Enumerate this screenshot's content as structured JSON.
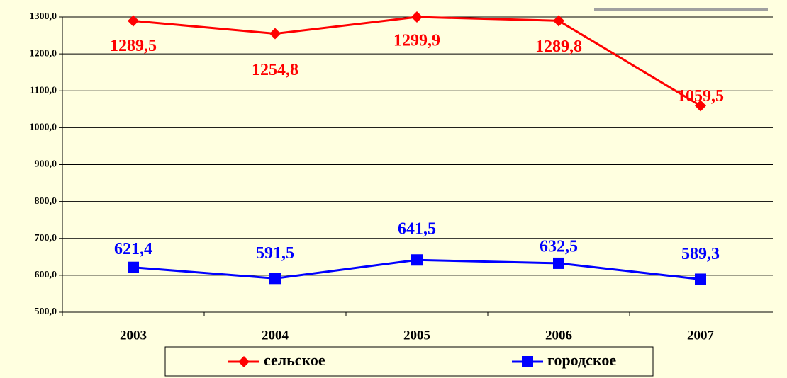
{
  "chart_data": {
    "type": "line",
    "categories": [
      "2003",
      "2004",
      "2005",
      "2006",
      "2007"
    ],
    "series": [
      {
        "name": "сельское",
        "color": "#ff0000",
        "marker": "diamond",
        "values": [
          1289.5,
          1254.8,
          1299.9,
          1289.8,
          1059.5
        ],
        "value_labels": [
          "1289,5",
          "1254,8",
          "1299,9",
          "1289,8",
          "1059,5"
        ]
      },
      {
        "name": "городское",
        "color": "#0000ff",
        "marker": "square",
        "values": [
          621.4,
          591.5,
          641.5,
          632.5,
          589.3
        ],
        "value_labels": [
          "621,4",
          "591,5",
          "641,5",
          "632,5",
          "589,3"
        ]
      }
    ],
    "ylim": [
      500,
      1300
    ],
    "yticks": [
      {
        "value": 500,
        "label": "500,0"
      },
      {
        "value": 600,
        "label": "600,0"
      },
      {
        "value": 700,
        "label": "700,0"
      },
      {
        "value": 800,
        "label": "800,0"
      },
      {
        "value": 900,
        "label": "900,0"
      },
      {
        "value": 1000,
        "label": "1000,0"
      },
      {
        "value": 1100,
        "label": "1100,0"
      },
      {
        "value": 1200,
        "label": "1200,0"
      },
      {
        "value": 1300,
        "label": "1300,0"
      }
    ],
    "grid": true,
    "legend": "bottom"
  }
}
